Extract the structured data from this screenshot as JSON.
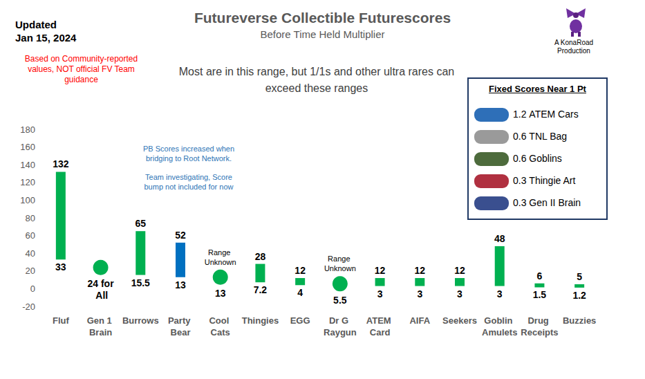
{
  "chart_data": {
    "type": "bar",
    "title": "Futureverse Collectible Futurescores",
    "subtitle": "Before Time Held Multiplier",
    "updated": [
      "Updated",
      "Jan 15, 2024"
    ],
    "disclaimer": "Based on Community-reported values, NOT official FV Team guidance",
    "range_note": "Most are in this range, but 1/1s and other ultra rares can exceed these ranges",
    "credit": "A KonaRoad Production",
    "pb_note": [
      "PB Scores increased when bridging to Root Network.",
      "Team investigating, Score bump not included for now"
    ],
    "categories": [
      "Fluf",
      "Gen 1 Brain",
      "Burrows",
      "Party Bear",
      "Cool Cats",
      "Thingies",
      "EGG",
      "Dr G Raygun",
      "ATEM Card",
      "AIFA",
      "Seekers",
      "Goblin Amulets",
      "Drug Receipts",
      "Buzzies"
    ],
    "values": [
      [
        33,
        132
      ],
      [
        24,
        null
      ],
      [
        15.5,
        65
      ],
      [
        13,
        52
      ],
      [
        13,
        null
      ],
      [
        7.2,
        28
      ],
      [
        4,
        12
      ],
      [
        5.5,
        null
      ],
      [
        3,
        12
      ],
      [
        3,
        12
      ],
      [
        3,
        12
      ],
      [
        3,
        48
      ],
      [
        1.5,
        6
      ],
      [
        1.2,
        5
      ]
    ],
    "value_labels": [
      [
        "33",
        "132"
      ],
      [
        "24 for All",
        null
      ],
      [
        "15.5",
        "65"
      ],
      [
        "13",
        "52"
      ],
      [
        "13",
        null
      ],
      [
        "7.2",
        "28"
      ],
      [
        "4",
        "12"
      ],
      [
        "5.5",
        null
      ],
      [
        "3",
        "12"
      ],
      [
        "3",
        "12"
      ],
      [
        "3",
        "12"
      ],
      [
        "3",
        "48"
      ],
      [
        "1.5",
        "6"
      ],
      [
        "1.2",
        "5"
      ]
    ],
    "colors": [
      "#00b050",
      "#00b050",
      "#00b050",
      "#0070c0",
      "#00b050",
      "#00b050",
      "#00b050",
      "#00b050",
      "#00b050",
      "#00b050",
      "#00b050",
      "#00b050",
      "#00b050",
      "#00b050"
    ],
    "marker": "circle",
    "annotations": [
      {
        "category": "Cool Cats",
        "text": "Range Unknown"
      },
      {
        "category": "Dr G Raygun",
        "text": "Range Unknown"
      }
    ],
    "fixed_scores": {
      "title": "Fixed Scores Near 1 Pt",
      "items": [
        {
          "value": 1.2,
          "label": "ATEM Cars"
        },
        {
          "value": 0.6,
          "label": "TNL Bag"
        },
        {
          "value": 0.6,
          "label": "Goblins"
        },
        {
          "value": 0.3,
          "label": "Thingie Art"
        },
        {
          "value": 0.3,
          "label": "Gen II Brain"
        }
      ]
    },
    "ylim": [
      -20,
      180
    ],
    "yticks": [
      -20,
      0,
      20,
      40,
      60,
      80,
      100,
      120,
      140,
      160,
      180
    ],
    "grid": false,
    "data_labels": true
  }
}
